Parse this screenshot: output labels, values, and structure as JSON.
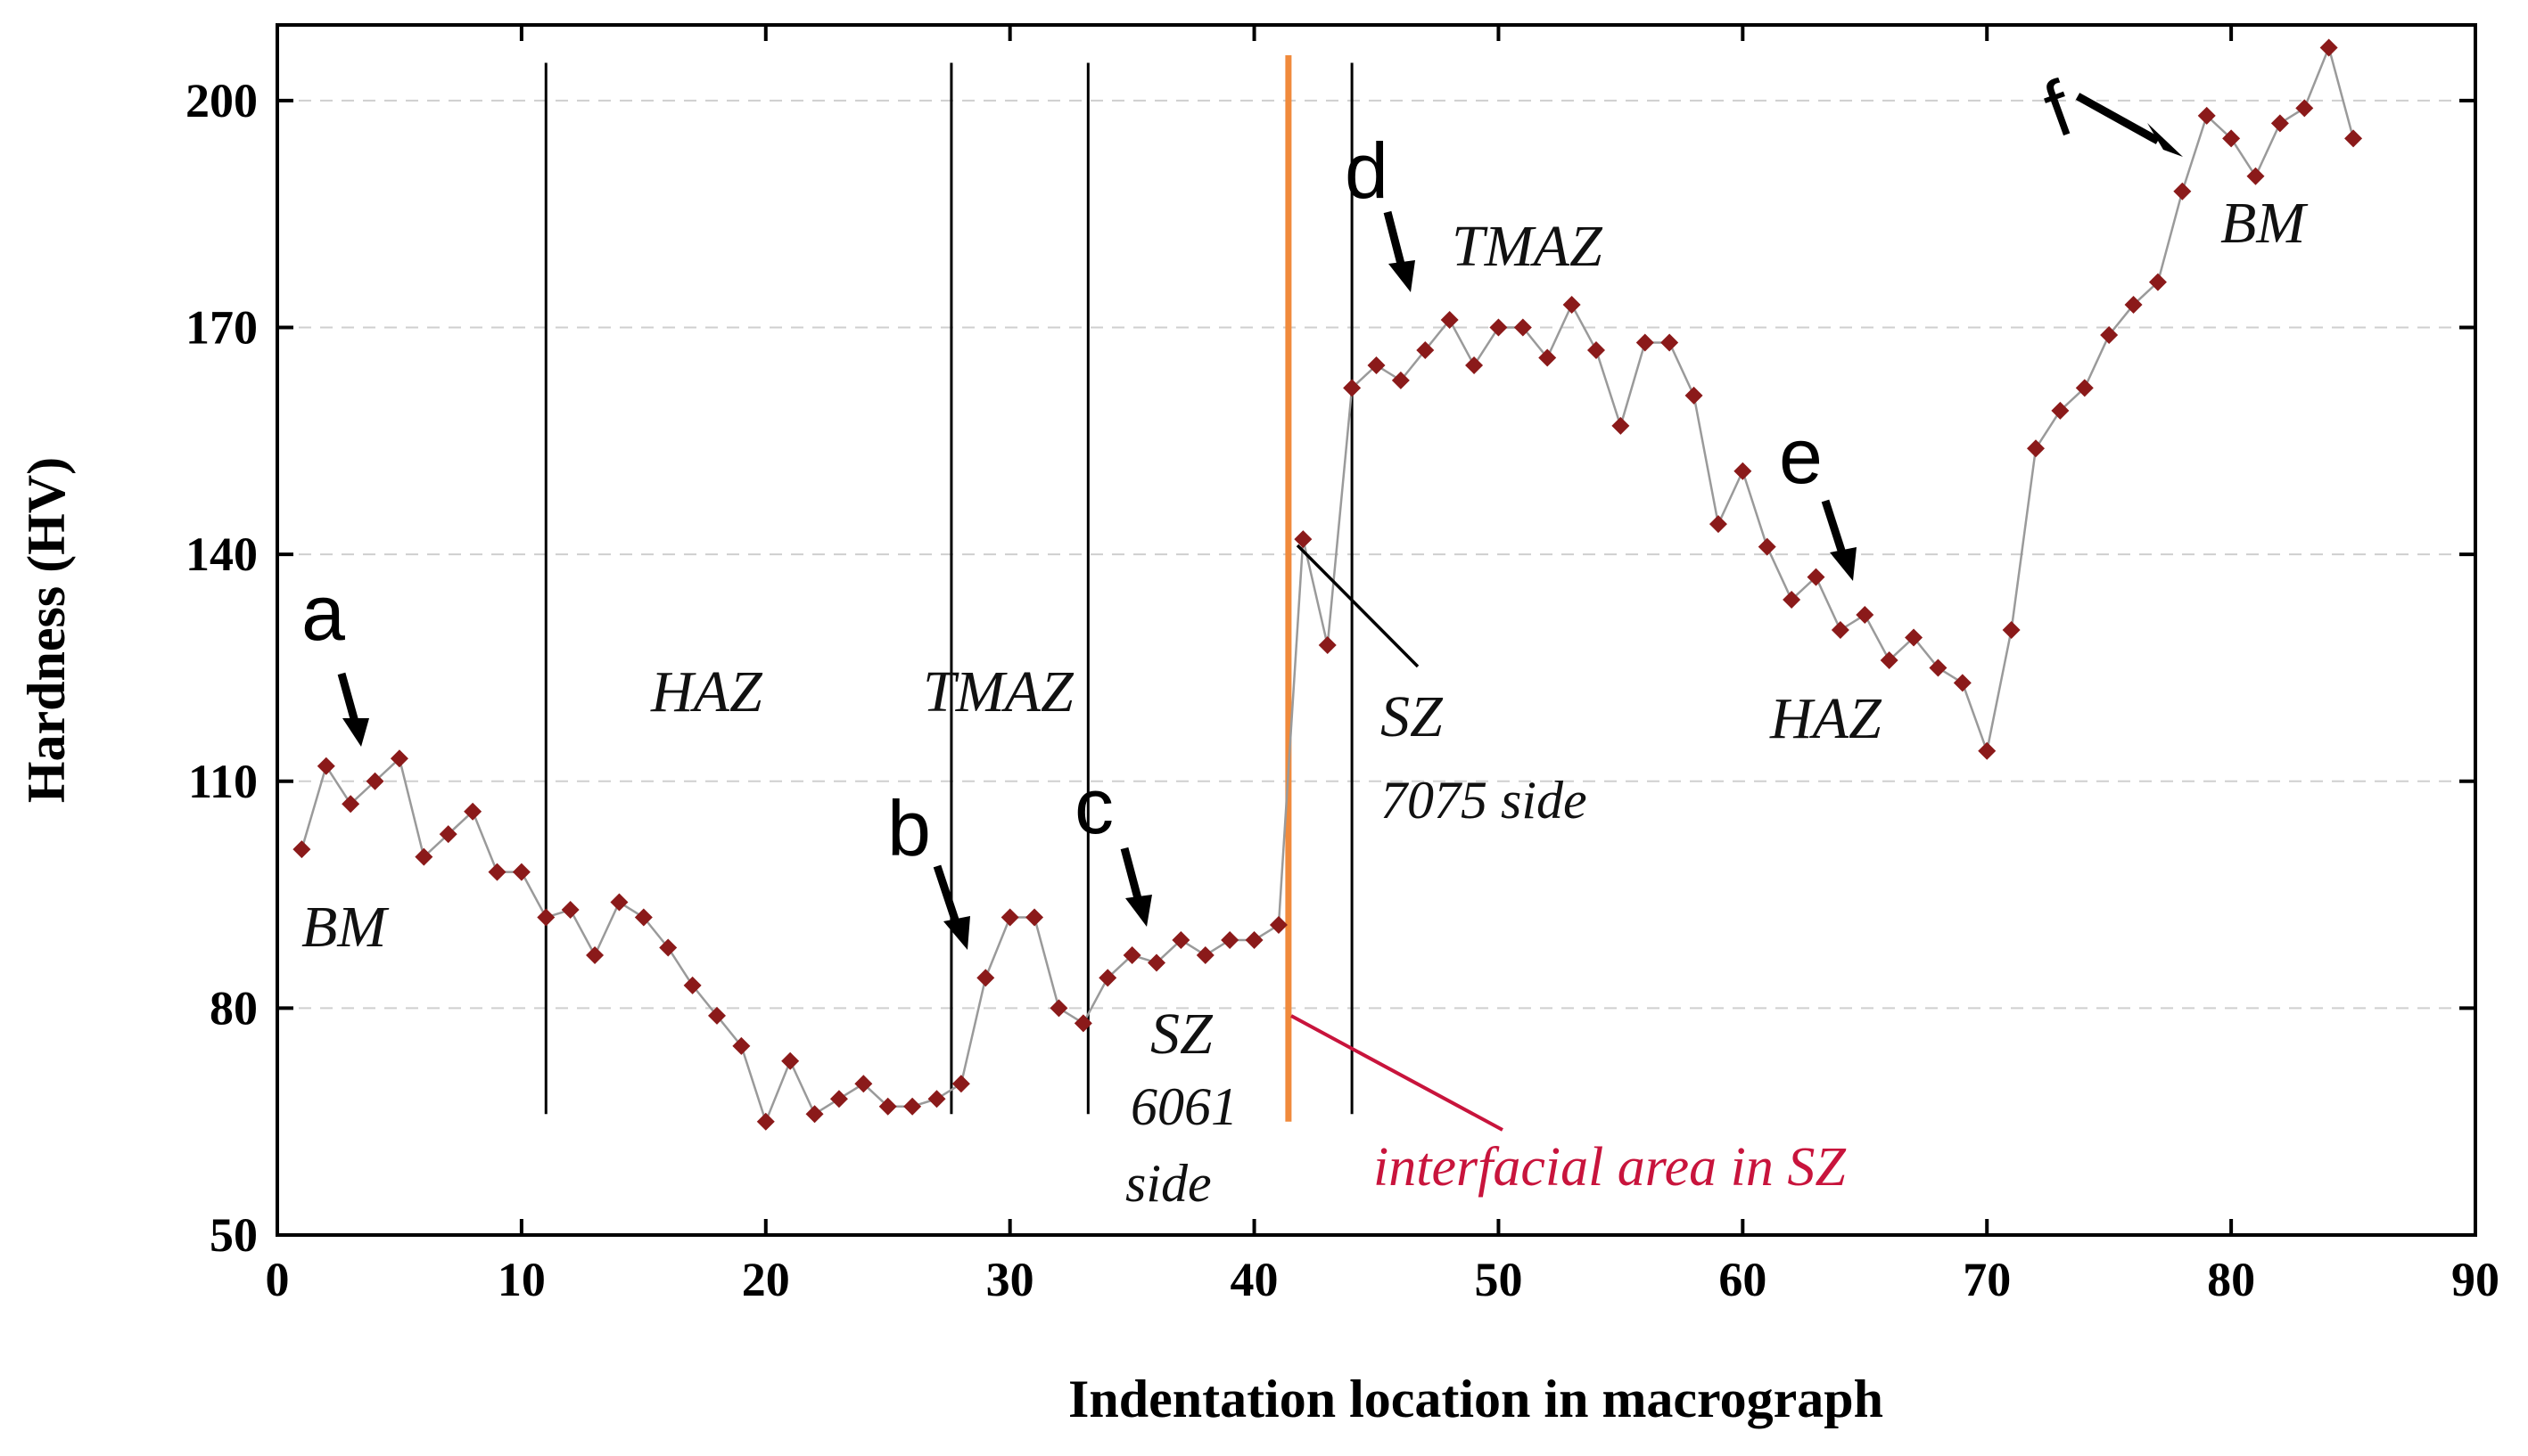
{
  "chart_data": {
    "type": "line",
    "title": "",
    "xlabel": "Indentation location in macrograph",
    "ylabel": "Hardness (HV)",
    "xlim": [
      0,
      90
    ],
    "ylim": [
      50,
      210
    ],
    "xticks": [
      0,
      10,
      20,
      30,
      40,
      50,
      60,
      70,
      80,
      90
    ],
    "yticks": [
      50,
      80,
      110,
      140,
      170,
      200
    ],
    "grid": "horizontal dashed",
    "colors": {
      "series": "#8b1a1a",
      "line": "#9a9a9a",
      "interface": "#f08a3c",
      "interfacial_text": "#c8143c"
    },
    "series": [
      {
        "name": "Hardness",
        "x": [
          1,
          2,
          3,
          4,
          5,
          6,
          7,
          8,
          9,
          10,
          11,
          12,
          13,
          14,
          15,
          16,
          17,
          18,
          19,
          20,
          21,
          22,
          23,
          24,
          25,
          26,
          27,
          28,
          29,
          30,
          31,
          32,
          33,
          34,
          35,
          36,
          37,
          38,
          39,
          40,
          41,
          42,
          43,
          44,
          45,
          46,
          47,
          48,
          49,
          50,
          51,
          52,
          53,
          54,
          55,
          56,
          57,
          58,
          59,
          60,
          61,
          62,
          63,
          64,
          65,
          66,
          67,
          68,
          69,
          70,
          71,
          72,
          73,
          74,
          75,
          76,
          77,
          78,
          79,
          80,
          81,
          82,
          83,
          84,
          85
        ],
        "values": [
          101,
          112,
          107,
          110,
          113,
          100,
          103,
          106,
          98,
          98,
          92,
          93,
          87,
          94,
          92,
          88,
          83,
          79,
          75,
          65,
          73,
          66,
          68,
          70,
          67,
          67,
          68,
          70,
          84,
          92,
          92,
          80,
          78,
          84,
          87,
          86,
          89,
          87,
          89,
          89,
          91,
          142,
          128,
          162,
          165,
          163,
          167,
          171,
          165,
          170,
          170,
          166,
          173,
          167,
          157,
          168,
          168,
          161,
          144,
          151,
          141,
          134,
          137,
          130,
          132,
          126,
          129,
          125,
          123,
          114,
          130,
          154,
          159,
          162,
          169,
          173,
          176,
          188,
          198,
          195,
          190,
          197,
          199,
          207,
          195
        ]
      }
    ],
    "zone_boundaries_x": [
      11,
      27.6,
      33.2,
      44
    ],
    "interface_x": 41.4,
    "annotations": {
      "regions": {
        "bm_left": "BM",
        "haz_left": "HAZ",
        "tmaz_left": "TMAZ",
        "sz_6061_a": "SZ",
        "sz_6061_b": "6061",
        "sz_6061_c": "side",
        "sz_7075_a": "SZ",
        "sz_7075_b": "7075 side",
        "tmaz_right": "TMAZ",
        "haz_right": "HAZ",
        "bm_right": "BM"
      },
      "markers": [
        "a",
        "b",
        "c",
        "d",
        "e",
        "f"
      ],
      "interfacial_label": "interfacial area in SZ"
    }
  }
}
